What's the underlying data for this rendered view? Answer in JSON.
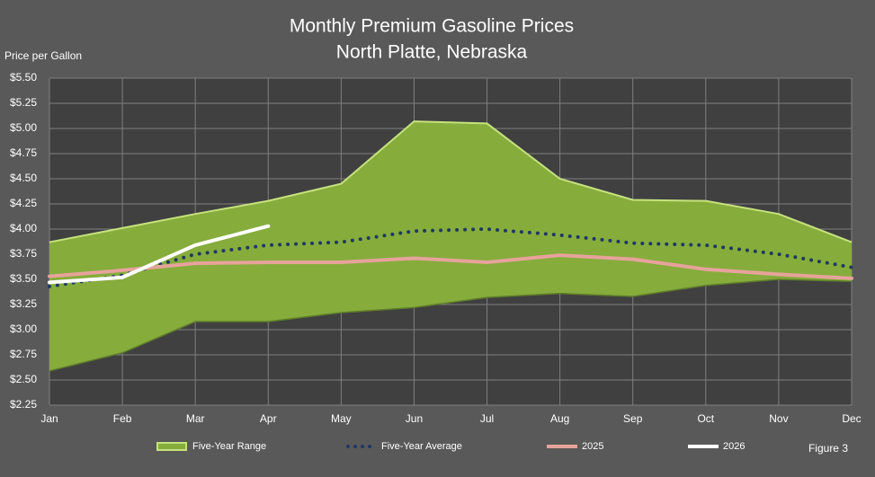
{
  "chart_data": {
    "type": "line",
    "title": "Monthly Premium Gasoline Prices",
    "subtitle": "North Platte, Nebraska",
    "y_label": "Price per Gallon",
    "annotation": "Figure 3",
    "categories": [
      "Jan",
      "Feb",
      "Mar",
      "Apr",
      "May",
      "Jun",
      "Jul",
      "Aug",
      "Sep",
      "Oct",
      "Nov",
      "Dec"
    ],
    "series": [
      {
        "name": "Five-Year Range",
        "color": "#86ac3c",
        "border": "#c6e27e",
        "style": "range",
        "low": [
          2.59,
          2.77,
          3.08,
          3.08,
          3.17,
          3.22,
          3.32,
          3.36,
          3.33,
          3.44,
          3.5,
          3.48
        ],
        "high": [
          3.87,
          4.01,
          4.15,
          4.28,
          4.45,
          5.07,
          5.05,
          4.5,
          4.29,
          4.28,
          4.15,
          3.87
        ]
      },
      {
        "name": "Five-Year Average",
        "color": "#1f3864",
        "style": "dotted",
        "values": [
          3.43,
          3.54,
          3.75,
          3.84,
          3.87,
          3.98,
          4.0,
          3.94,
          3.86,
          3.84,
          3.75,
          3.62
        ]
      },
      {
        "name": "2025",
        "color": "#e6a39a",
        "style": "solid",
        "values": [
          3.53,
          3.59,
          3.66,
          3.67,
          3.67,
          3.71,
          3.67,
          3.74,
          3.7,
          3.6,
          3.55,
          3.51
        ]
      },
      {
        "name": "2026",
        "color": "#ffffff",
        "style": "solid",
        "values": [
          3.47,
          3.52,
          3.84,
          4.03,
          null,
          null,
          null,
          null,
          null,
          null,
          null,
          null
        ]
      }
    ],
    "ylim": [
      2.25,
      5.5
    ],
    "yticks": [
      {
        "value": 2.25,
        "label": "$2.25"
      },
      {
        "value": 2.5,
        "label": "$2.50"
      },
      {
        "value": 2.75,
        "label": "$2.75"
      },
      {
        "value": 3,
        "label": "$3.00"
      },
      {
        "value": 3.25,
        "label": "$3.25"
      },
      {
        "value": 3.5,
        "label": "$3.50"
      },
      {
        "value": 3.75,
        "label": "$3.75"
      },
      {
        "value": 4,
        "label": "$4.00"
      },
      {
        "value": 4.25,
        "label": "$4.25"
      },
      {
        "value": 4.5,
        "label": "$4.50"
      },
      {
        "value": 4.75,
        "label": "$4.75"
      },
      {
        "value": 5,
        "label": "$5.00"
      },
      {
        "value": 5.25,
        "label": "$5.25"
      },
      {
        "value": 5.5,
        "label": "$5.50"
      }
    ],
    "grid": true,
    "plot_background": "#404040",
    "grid_color": "#7f7f7f"
  }
}
